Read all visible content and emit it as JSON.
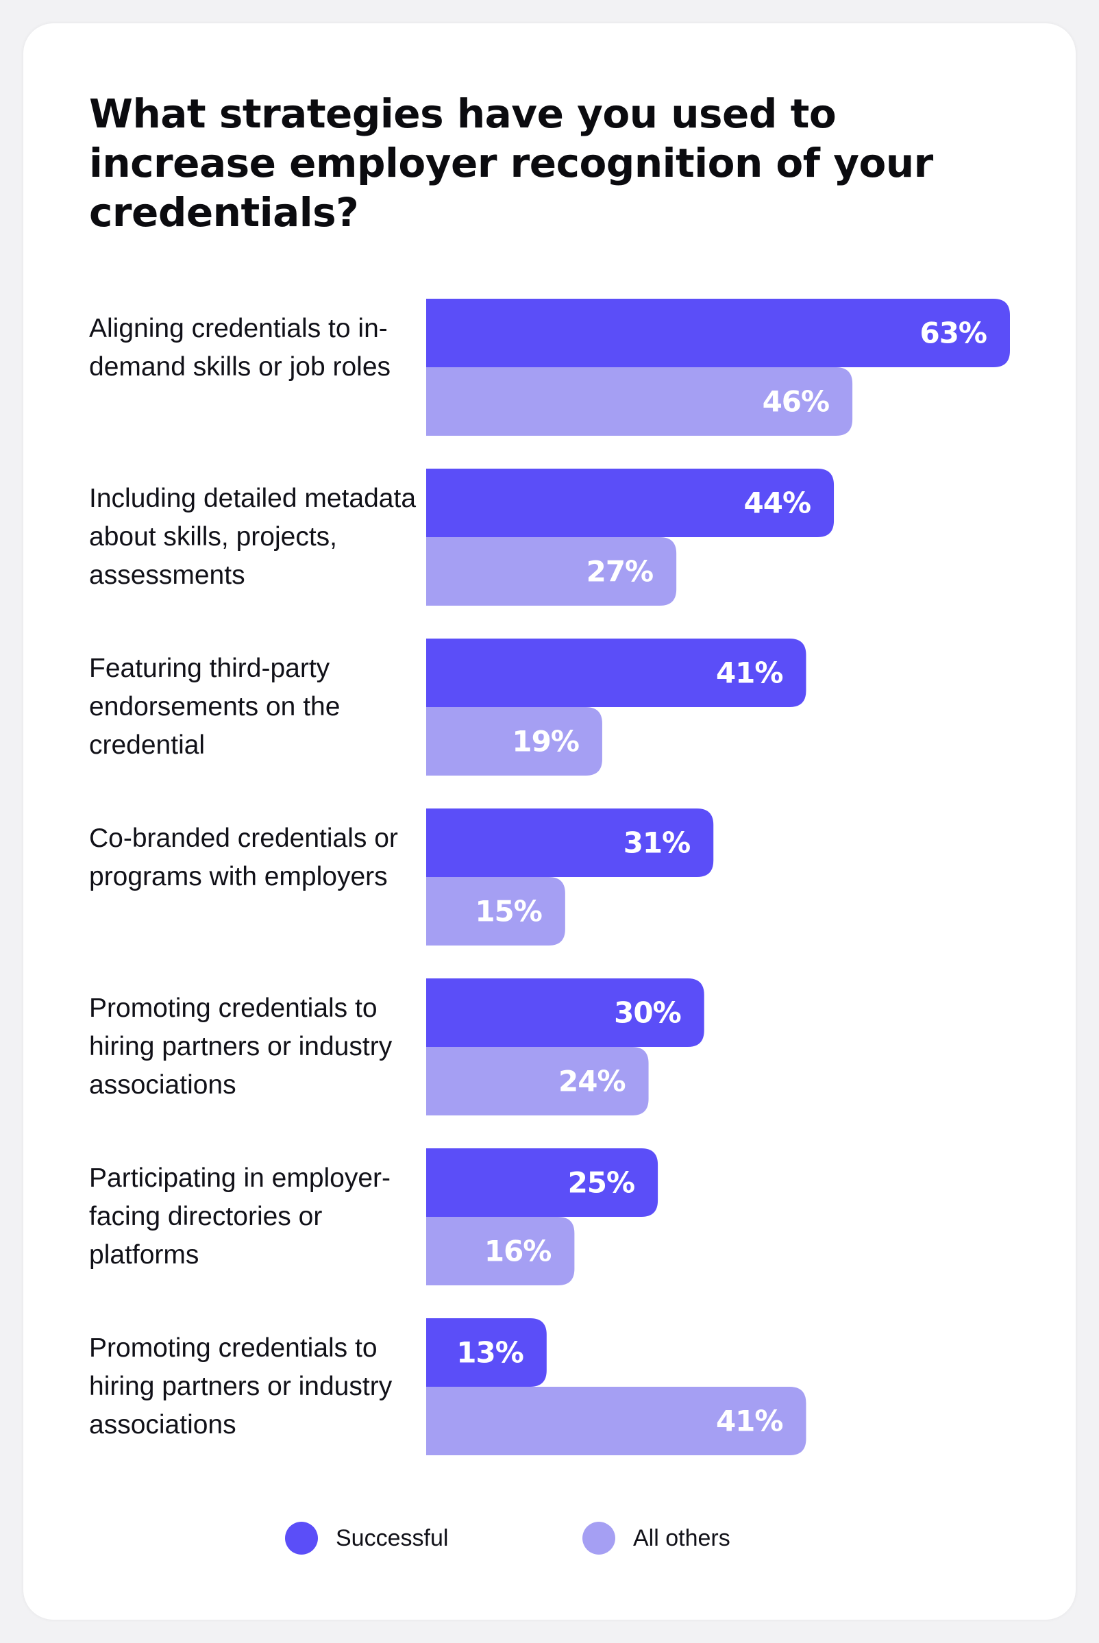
{
  "chart_data": {
    "type": "bar",
    "orientation": "horizontal",
    "title": "What strategies have you used to increase employer recognition of your credentials?",
    "categories": [
      "Aligning credentials to in-demand skills or job roles",
      "Including detailed metadata about skills, projects, assessments",
      "Featuring third-party endorsements on the credential",
      "Co-branded credentials or programs with employers",
      "Promoting credentials to hiring partners or industry associations",
      "Participating in employer-facing directories or platforms",
      "Promoting credentials to hiring partners or industry associations"
    ],
    "series": [
      {
        "name": "Successful",
        "color": "#5b4ef8",
        "values": [
          63,
          44,
          41,
          31,
          30,
          25,
          13
        ]
      },
      {
        "name": "All others",
        "color": "#a59ff3",
        "values": [
          46,
          27,
          19,
          15,
          24,
          16,
          41
        ]
      }
    ],
    "value_suffix": "%",
    "xlim": [
      0,
      63
    ],
    "xlabel": "",
    "ylabel": "",
    "grid": false,
    "legend_position": "bottom-center"
  }
}
